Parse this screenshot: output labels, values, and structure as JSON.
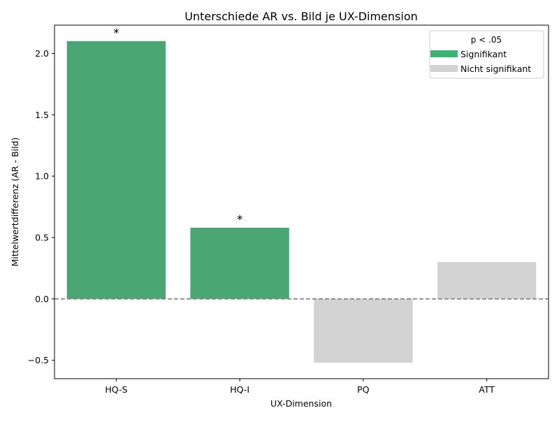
{
  "chart_data": {
    "type": "bar",
    "title": "Unterschiede AR vs. Bild je UX-Dimension",
    "xlabel": "UX-Dimension",
    "ylabel": "Mittelwertdifferenz (AR - Bild)",
    "categories": [
      "HQ-S",
      "HQ-I",
      "PQ",
      "ATT"
    ],
    "values": [
      2.1,
      0.58,
      -0.52,
      0.3
    ],
    "significant": [
      true,
      true,
      false,
      false
    ],
    "significance_marker": "*",
    "ylim": [
      -0.65,
      2.23
    ],
    "yticks": [
      -0.5,
      0.0,
      0.5,
      1.0,
      1.5,
      2.0
    ],
    "ytick_labels": [
      "−0.5",
      "0.0",
      "0.5",
      "1.0",
      "1.5",
      "2.0"
    ],
    "reference_line": 0,
    "grid": false,
    "legend": {
      "title": "p < .05",
      "position": "top-right",
      "entries": [
        {
          "label": "Signifikant",
          "color": "#3cb371"
        },
        {
          "label": "Nicht signifikant",
          "color": "#d3d3d3"
        }
      ]
    },
    "colors": {
      "significant": "#4aa673",
      "not_significant": "#d3d3d3",
      "reference_line": "#808080"
    }
  }
}
